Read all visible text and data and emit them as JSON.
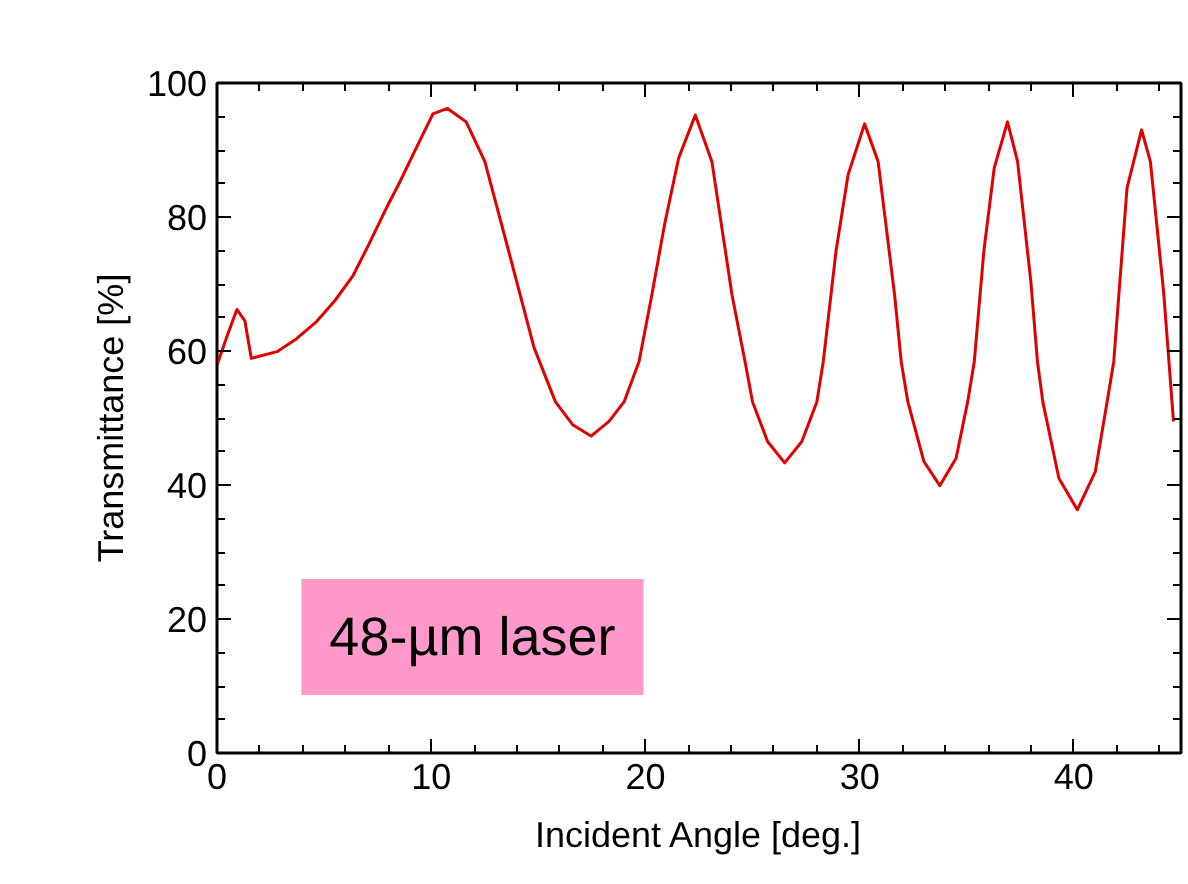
{
  "chart_data": {
    "type": "line",
    "xlabel": "Incident Angle [deg.]",
    "ylabel": "Transmittance [%]",
    "xlim": [
      0,
      45
    ],
    "ylim": [
      0,
      100
    ],
    "xticks": [
      0,
      10,
      20,
      30,
      40
    ],
    "yticks": [
      0,
      20,
      40,
      60,
      80,
      100
    ],
    "grid": false,
    "annotations": [
      "48-µm laser"
    ],
    "series": [
      {
        "color": "#e00000",
        "x": [
          0,
          0.5,
          0.93,
          1.3,
          1.6,
          2.8,
          3.7,
          4.65,
          5.5,
          6.36,
          7.1,
          7.9,
          8.5,
          9.15,
          10.08,
          10.76,
          11.63,
          12.5,
          13.5,
          14.1,
          14.8,
          15.8,
          16.6,
          17.46,
          18.3,
          19.0,
          19.7,
          20.3,
          20.9,
          21.55,
          22.33,
          23.1,
          24.04,
          24.65,
          25.0,
          25.7,
          26.5,
          27.3,
          28.0,
          28.3,
          28.9,
          29.46,
          30.23,
          30.86,
          31.63,
          31.94,
          32.25,
          33.0,
          33.74,
          34.5,
          35.04,
          35.35,
          35.8,
          36.28,
          36.9,
          37.37,
          37.99,
          38.3,
          38.55,
          39.3,
          40.16,
          41.0,
          41.55,
          41.86,
          42.48,
          43.16,
          43.57,
          44.19,
          44.65
        ],
        "values": [
          57.9,
          62.5,
          66.2,
          64.5,
          58.9,
          59.9,
          61.8,
          64.4,
          67.5,
          71.3,
          76.0,
          81.3,
          85.0,
          89.3,
          95.4,
          96.2,
          94.2,
          88.3,
          76.3,
          69.0,
          60.5,
          52.4,
          49.0,
          47.3,
          49.5,
          52.4,
          58.4,
          68.4,
          79.0,
          88.8,
          95.2,
          88.3,
          68.4,
          58.4,
          52.4,
          46.5,
          43.3,
          46.5,
          52.4,
          58.4,
          75.0,
          86.3,
          93.9,
          88.3,
          68.4,
          58.4,
          52.4,
          43.5,
          39.9,
          44.0,
          52.4,
          58.4,
          75.0,
          87.3,
          94.2,
          88.3,
          70.4,
          58.4,
          52.4,
          41.0,
          36.3,
          42.0,
          52.4,
          58.4,
          84.3,
          93.0,
          88.3,
          68.8,
          49.5
        ]
      }
    ]
  }
}
